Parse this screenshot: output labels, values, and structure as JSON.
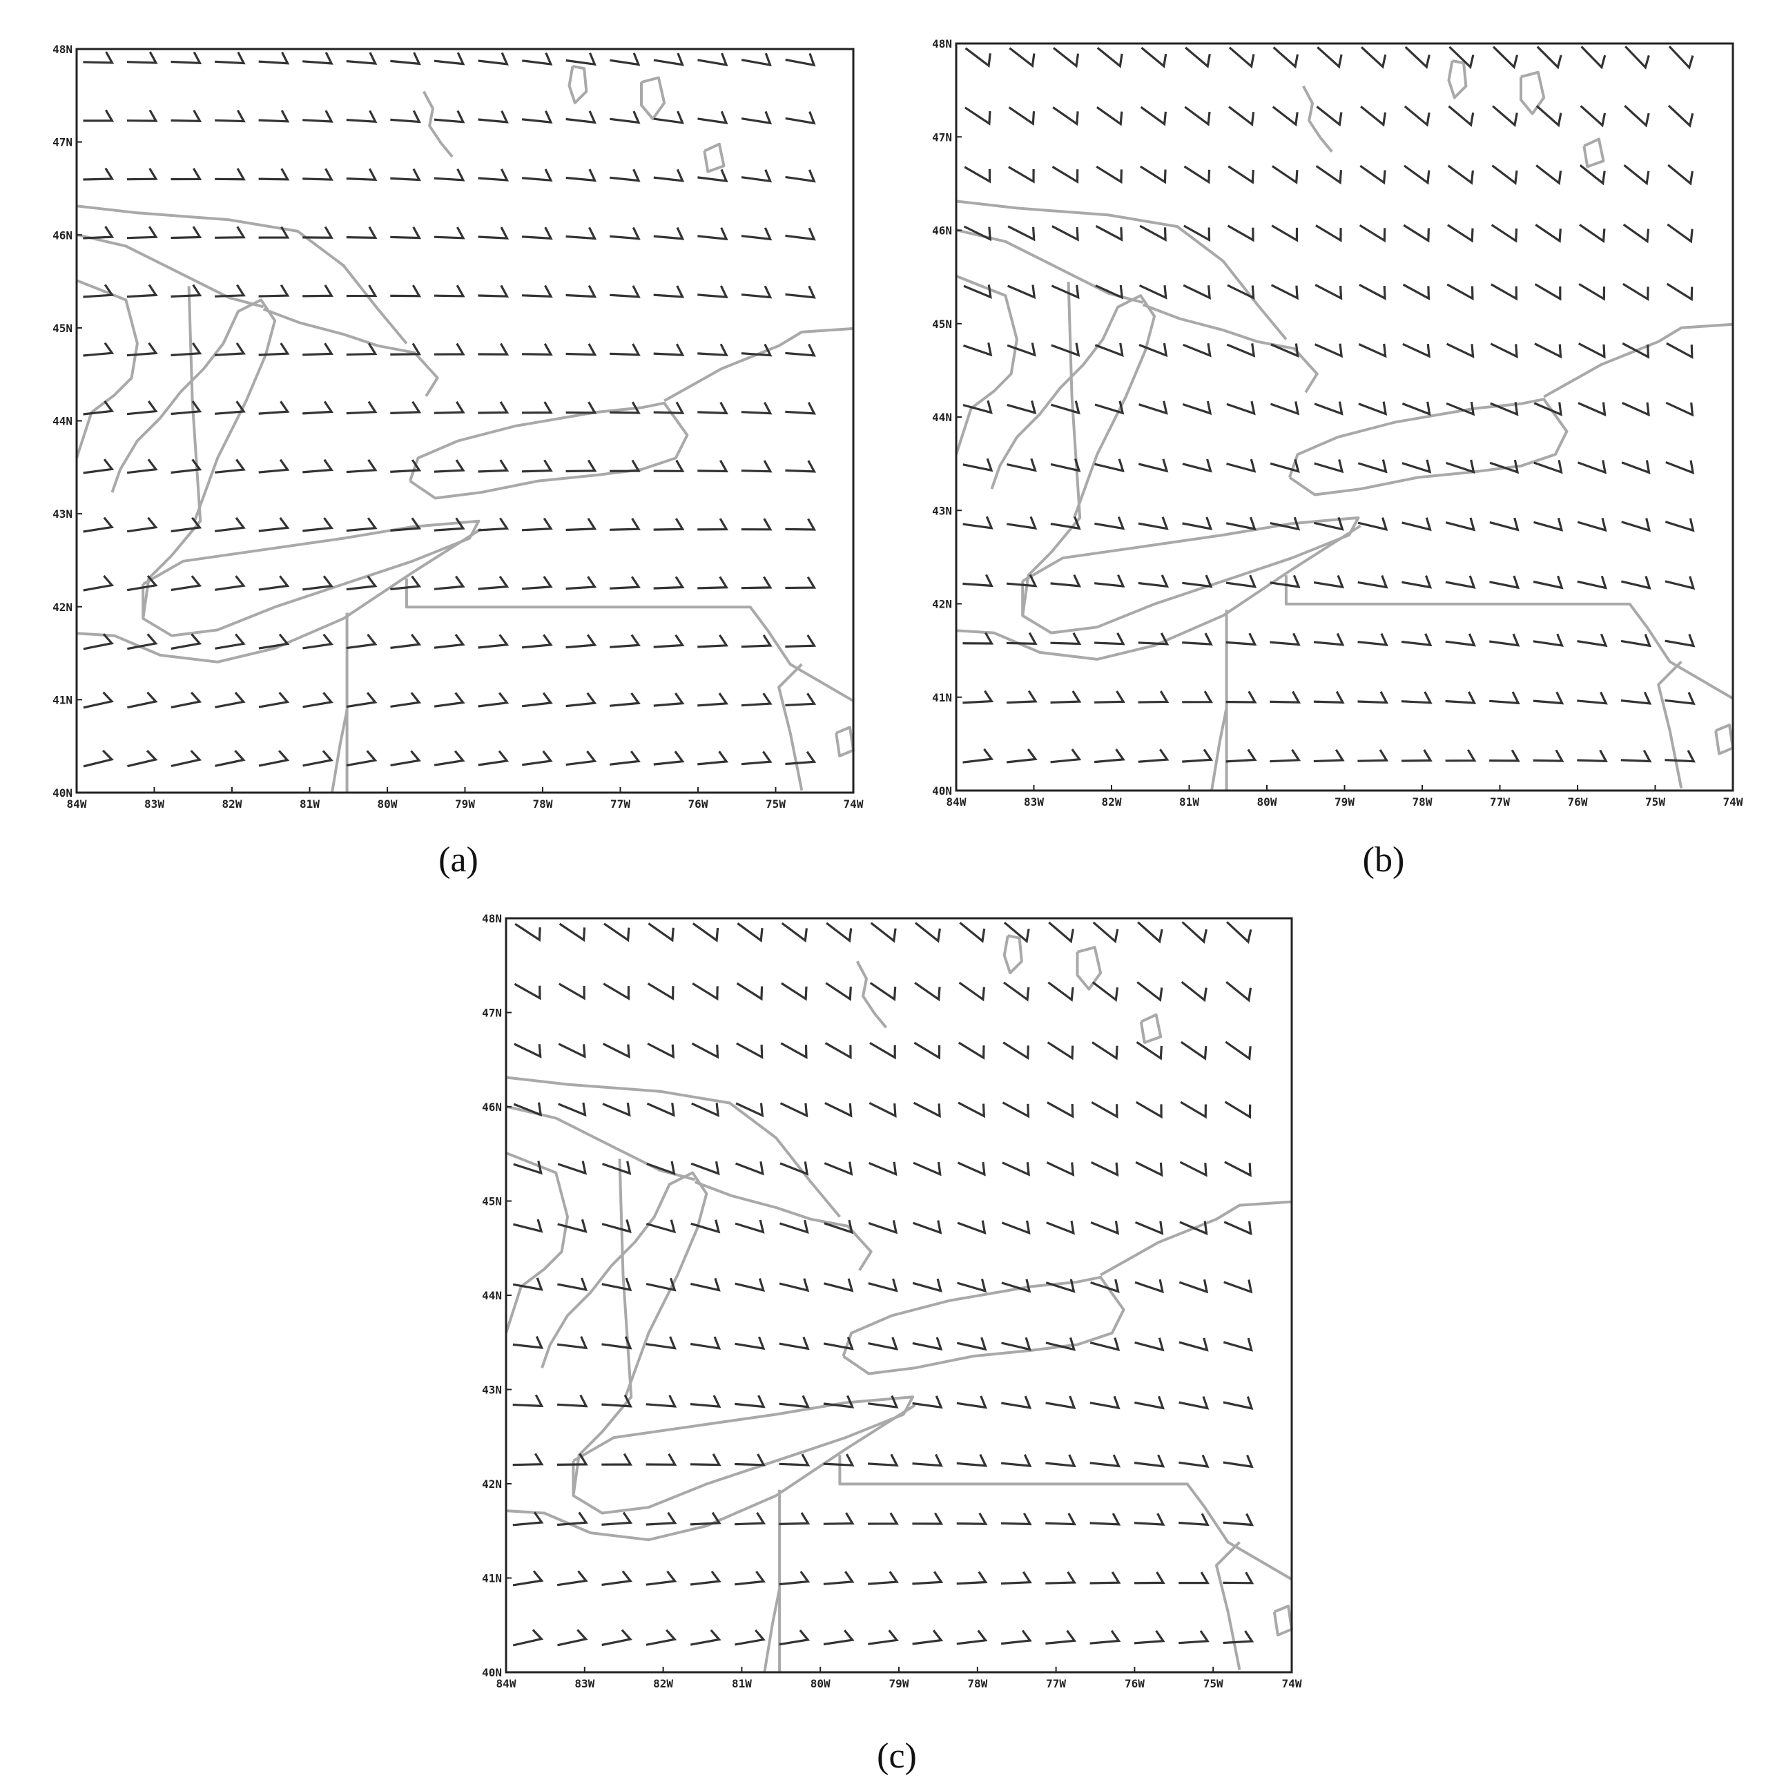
{
  "panels": [
    {
      "label": "(a)"
    },
    {
      "label": "(b)"
    },
    {
      "label": "(c)"
    }
  ],
  "axes": {
    "longitude_labels": [
      "84W",
      "83W",
      "82W",
      "81W",
      "80W",
      "79W",
      "78W",
      "77W",
      "76W",
      "75W",
      "74W"
    ],
    "latitude_labels": [
      "40N",
      "41N",
      "42N",
      "43N",
      "44N",
      "45N",
      "46N",
      "47N",
      "48N"
    ]
  }
}
